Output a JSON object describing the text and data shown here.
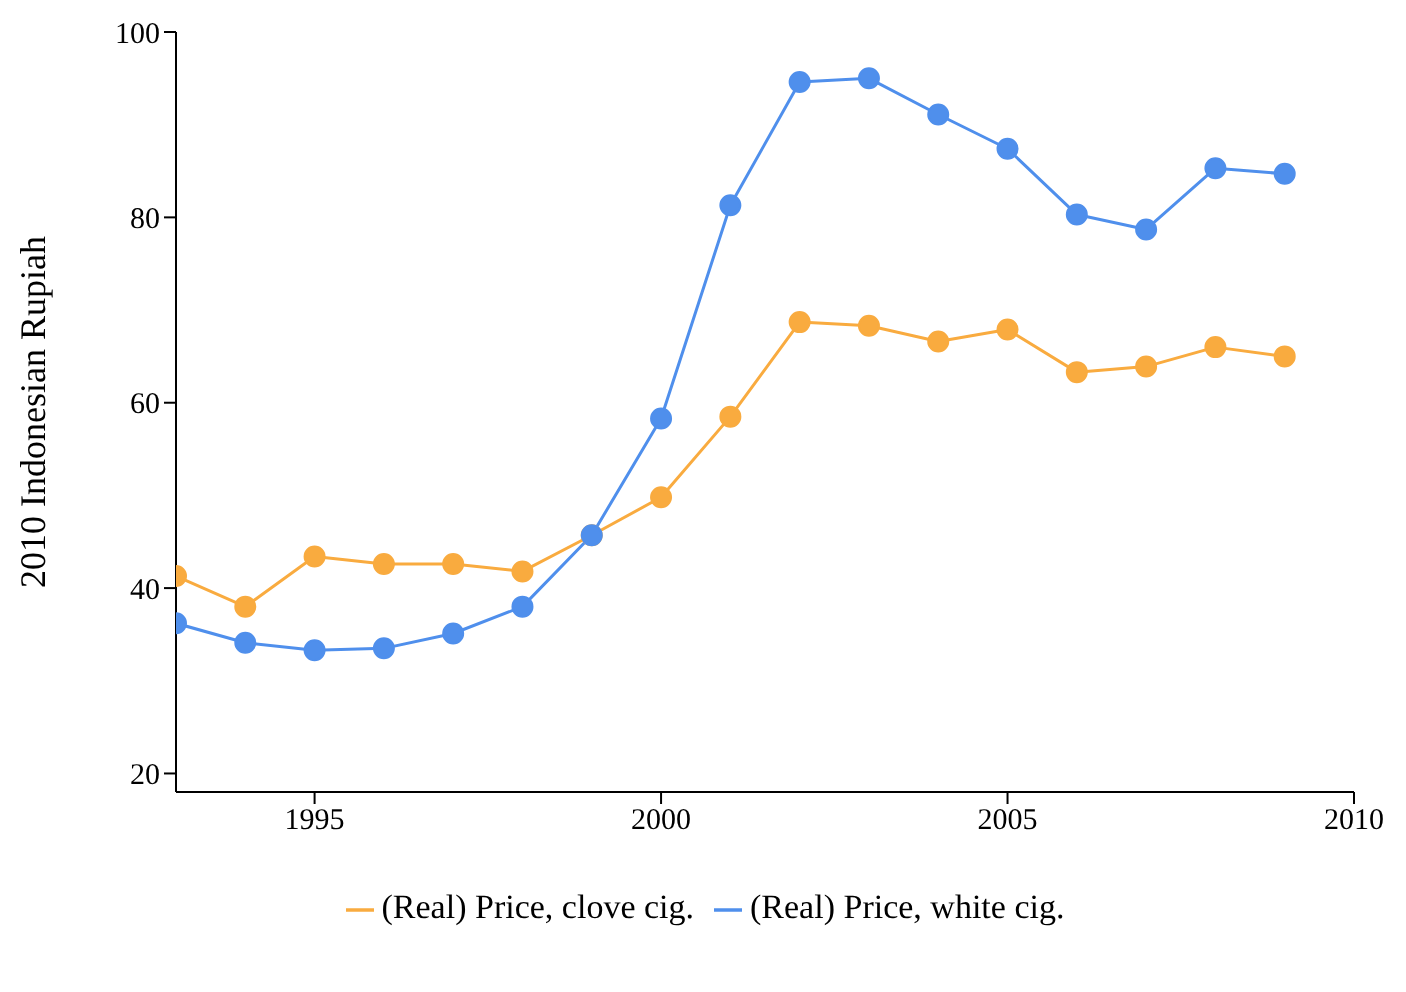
{
  "chart_data": {
    "type": "line",
    "ylabel": "2010 Indonesian Rupiah",
    "x": [
      1993,
      1994,
      1995,
      1996,
      1997,
      1998,
      1999,
      2000,
      2001,
      2002,
      2003,
      2004,
      2005,
      2006,
      2007,
      2008,
      2009
    ],
    "series": [
      {
        "name": "(Real) Price, clove cig.",
        "color": "#f9ab3f",
        "values": [
          41.3,
          38.0,
          43.4,
          42.6,
          42.6,
          41.8,
          45.7,
          49.8,
          58.5,
          68.7,
          68.3,
          66.6,
          67.9,
          63.3,
          63.9,
          66.0,
          65.0
        ]
      },
      {
        "name": "(Real) Price, white cig.",
        "color": "#4f8fec",
        "values": [
          36.2,
          34.1,
          33.3,
          33.5,
          35.1,
          38.0,
          45.7,
          58.3,
          81.3,
          94.6,
          95.0,
          91.1,
          87.4,
          80.3,
          78.7,
          85.3,
          84.7
        ]
      }
    ],
    "xlim": [
      1993,
      2010
    ],
    "xticks": [
      1995,
      2000,
      2005,
      2010
    ],
    "ylim": [
      18,
      100
    ],
    "yticks": [
      20,
      40,
      60,
      80,
      100
    ],
    "grid": false,
    "legend": "bottom",
    "marker": "circle",
    "line_style": "solid"
  }
}
